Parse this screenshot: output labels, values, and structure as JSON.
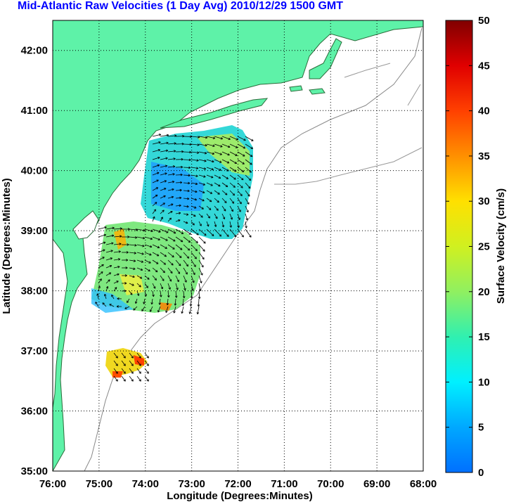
{
  "title": "Mid-Atlantic Raw Velocities (1 Day Avg) 2010/12/29 1500 GMT",
  "colors": {
    "land": "#5ef2a8",
    "title": "#0000ff",
    "grid": "#000000",
    "coast_outline": "#888888"
  },
  "map": {
    "xlabel": "Longitude (Degrees:Minutes)",
    "ylabel": "Latitude (Degrees:Minutes)",
    "lon_range": [
      -76,
      -68
    ],
    "lat_range": [
      35,
      42.5
    ],
    "x_ticks": [
      {
        "value": -76,
        "label": "76:00"
      },
      {
        "value": -75,
        "label": "75:00"
      },
      {
        "value": -74,
        "label": "74:00"
      },
      {
        "value": -73,
        "label": "73:00"
      },
      {
        "value": -72,
        "label": "72:00"
      },
      {
        "value": -71,
        "label": "71:00"
      },
      {
        "value": -70,
        "label": "70:00"
      },
      {
        "value": -69,
        "label": "69:00"
      },
      {
        "value": -68,
        "label": "68:00"
      }
    ],
    "y_ticks": [
      {
        "value": 35,
        "label": "35:00"
      },
      {
        "value": 36,
        "label": "36:00"
      },
      {
        "value": 37,
        "label": "37:00"
      },
      {
        "value": 38,
        "label": "38:00"
      },
      {
        "value": 39,
        "label": "39:00"
      },
      {
        "value": 40,
        "label": "40:00"
      },
      {
        "value": 41,
        "label": "41:00"
      },
      {
        "value": 42,
        "label": "42:00"
      }
    ],
    "grid": "dotted"
  },
  "colorbar": {
    "label": "Surface Velocity (cm/s)",
    "range": [
      0,
      50
    ],
    "ticks": [
      {
        "value": 0,
        "label": "0"
      },
      {
        "value": 5,
        "label": "5"
      },
      {
        "value": 10,
        "label": "10"
      },
      {
        "value": 15,
        "label": "15"
      },
      {
        "value": 20,
        "label": "20"
      },
      {
        "value": 25,
        "label": "25"
      },
      {
        "value": 30,
        "label": "30"
      },
      {
        "value": 35,
        "label": "35"
      },
      {
        "value": 40,
        "label": "40"
      },
      {
        "value": 45,
        "label": "45"
      },
      {
        "value": 50,
        "label": "50"
      }
    ],
    "colormap": "jet"
  }
}
